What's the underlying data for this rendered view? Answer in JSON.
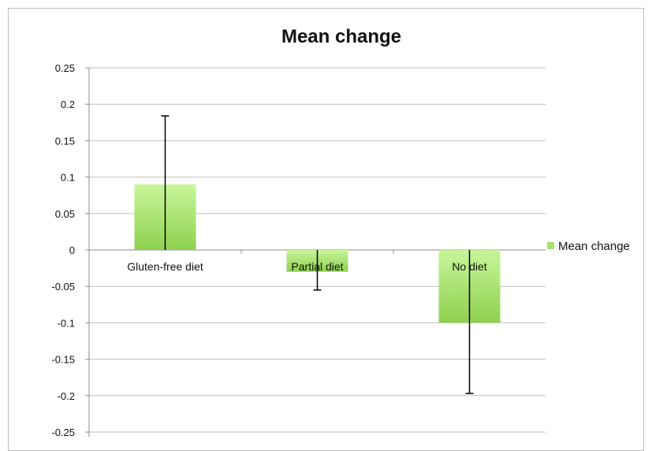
{
  "chart_data": {
    "type": "bar",
    "title": "Mean change",
    "categories": [
      "Gluten-free diet",
      "Partial diet",
      "No diet"
    ],
    "series": [
      {
        "name": "Mean change",
        "values": [
          0.09,
          -0.03,
          -0.1
        ],
        "error_low": [
          0.0,
          -0.055,
          -0.197
        ],
        "error_high": [
          0.184,
          0.0,
          0.0
        ]
      }
    ],
    "ylim": [
      -0.25,
      0.25
    ],
    "yticks": [
      "0.25",
      "0.2",
      "0.15",
      "0.1",
      "0.05",
      "0",
      "-0.05",
      "-0.1",
      "-0.15",
      "-0.2",
      "-0.25"
    ],
    "grid": true,
    "legend": "right",
    "colors": {
      "bar_top": "#c8f59a",
      "bar_bottom": "#8fd14f",
      "legend": "#a6e36b",
      "grid": "#bfbfbf",
      "axis": "#8c8c8c"
    }
  }
}
